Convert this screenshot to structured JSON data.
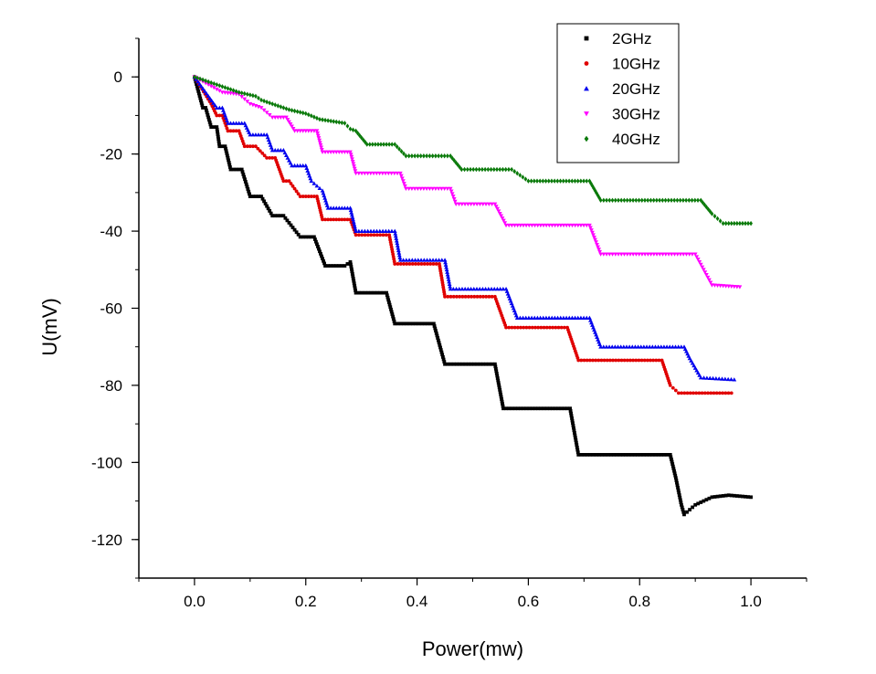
{
  "chart_data": {
    "type": "scatter",
    "title": "",
    "xlabel": "Power(mw)",
    "ylabel": "U(mV)",
    "xlim": [
      -0.1,
      1.1
    ],
    "ylim": [
      -130,
      10
    ],
    "xticks": [
      0.0,
      0.2,
      0.4,
      0.6,
      0.8,
      1.0
    ],
    "xtick_labels": [
      "0.0",
      "0.2",
      "0.4",
      "0.6",
      "0.8",
      "1.0"
    ],
    "yticks": [
      0,
      -20,
      -40,
      -60,
      -80,
      -100,
      -120
    ],
    "ytick_labels": [
      "0",
      "-20",
      "-40",
      "-60",
      "-80",
      "-100",
      "-120"
    ],
    "grid": false,
    "legend_position": "top-right",
    "series": [
      {
        "name": "2GHz",
        "color": "#000000",
        "marker": "square",
        "points": [
          [
            0,
            0
          ],
          [
            0.015,
            -8
          ],
          [
            0.02,
            -8
          ],
          [
            0.03,
            -13
          ],
          [
            0.04,
            -13
          ],
          [
            0.045,
            -18
          ],
          [
            0.055,
            -18
          ],
          [
            0.065,
            -24
          ],
          [
            0.085,
            -24
          ],
          [
            0.1,
            -31
          ],
          [
            0.12,
            -31
          ],
          [
            0.14,
            -36
          ],
          [
            0.16,
            -36
          ],
          [
            0.19,
            -41.5
          ],
          [
            0.215,
            -41.5
          ],
          [
            0.235,
            -49
          ],
          [
            0.27,
            -49
          ],
          [
            0.28,
            -48
          ],
          [
            0.29,
            -56
          ],
          [
            0.345,
            -56
          ],
          [
            0.36,
            -64
          ],
          [
            0.43,
            -64
          ],
          [
            0.45,
            -74.5
          ],
          [
            0.54,
            -74.5
          ],
          [
            0.555,
            -86
          ],
          [
            0.675,
            -86
          ],
          [
            0.69,
            -98
          ],
          [
            0.855,
            -98
          ],
          [
            0.865,
            -104
          ],
          [
            0.875,
            -111
          ],
          [
            0.88,
            -113.5
          ],
          [
            0.9,
            -111
          ],
          [
            0.93,
            -109
          ],
          [
            0.96,
            -108.5
          ],
          [
            1.0,
            -109
          ]
        ]
      },
      {
        "name": "10GHz",
        "color": "#e00000",
        "marker": "circle",
        "points": [
          [
            0,
            0
          ],
          [
            0.03,
            -7
          ],
          [
            0.04,
            -10
          ],
          [
            0.05,
            -10
          ],
          [
            0.06,
            -14
          ],
          [
            0.08,
            -14
          ],
          [
            0.09,
            -18
          ],
          [
            0.11,
            -18
          ],
          [
            0.13,
            -21
          ],
          [
            0.145,
            -21
          ],
          [
            0.16,
            -27
          ],
          [
            0.17,
            -27
          ],
          [
            0.19,
            -31
          ],
          [
            0.22,
            -31
          ],
          [
            0.23,
            -37
          ],
          [
            0.28,
            -37
          ],
          [
            0.29,
            -41
          ],
          [
            0.35,
            -41
          ],
          [
            0.36,
            -48.5
          ],
          [
            0.44,
            -48.5
          ],
          [
            0.45,
            -57
          ],
          [
            0.54,
            -57
          ],
          [
            0.56,
            -65
          ],
          [
            0.67,
            -65
          ],
          [
            0.69,
            -73.5
          ],
          [
            0.84,
            -73.5
          ],
          [
            0.855,
            -80
          ],
          [
            0.87,
            -82
          ],
          [
            0.965,
            -82
          ]
        ]
      },
      {
        "name": "20GHz",
        "color": "#0000ee",
        "marker": "triangle-up",
        "points": [
          [
            0,
            0
          ],
          [
            0.04,
            -8
          ],
          [
            0.05,
            -8
          ],
          [
            0.06,
            -12
          ],
          [
            0.09,
            -12
          ],
          [
            0.1,
            -15
          ],
          [
            0.13,
            -15
          ],
          [
            0.14,
            -19
          ],
          [
            0.16,
            -19
          ],
          [
            0.175,
            -23
          ],
          [
            0.2,
            -23
          ],
          [
            0.21,
            -27
          ],
          [
            0.23,
            -29.5
          ],
          [
            0.24,
            -34
          ],
          [
            0.28,
            -34
          ],
          [
            0.29,
            -40
          ],
          [
            0.36,
            -40
          ],
          [
            0.37,
            -47.5
          ],
          [
            0.45,
            -47.5
          ],
          [
            0.46,
            -55
          ],
          [
            0.56,
            -55
          ],
          [
            0.58,
            -62.5
          ],
          [
            0.71,
            -62.5
          ],
          [
            0.73,
            -70
          ],
          [
            0.88,
            -70
          ],
          [
            0.89,
            -73
          ],
          [
            0.91,
            -78
          ],
          [
            0.97,
            -78.5
          ]
        ]
      },
      {
        "name": "30GHz",
        "color": "#ff00ff",
        "marker": "triangle-down",
        "points": [
          [
            0,
            0
          ],
          [
            0.05,
            -4
          ],
          [
            0.08,
            -4.5
          ],
          [
            0.1,
            -7
          ],
          [
            0.12,
            -8
          ],
          [
            0.14,
            -10.5
          ],
          [
            0.165,
            -10.5
          ],
          [
            0.18,
            -14
          ],
          [
            0.22,
            -14
          ],
          [
            0.23,
            -19.5
          ],
          [
            0.28,
            -19.5
          ],
          [
            0.29,
            -25
          ],
          [
            0.37,
            -25
          ],
          [
            0.38,
            -29
          ],
          [
            0.46,
            -29
          ],
          [
            0.47,
            -33
          ],
          [
            0.54,
            -33
          ],
          [
            0.56,
            -38.5
          ],
          [
            0.71,
            -38.5
          ],
          [
            0.73,
            -46
          ],
          [
            0.9,
            -46
          ],
          [
            0.915,
            -50
          ],
          [
            0.93,
            -54
          ],
          [
            0.98,
            -54.5
          ]
        ]
      },
      {
        "name": "40GHz",
        "color": "#0a7a0a",
        "marker": "diamond",
        "points": [
          [
            0,
            0
          ],
          [
            0.04,
            -2
          ],
          [
            0.06,
            -3
          ],
          [
            0.08,
            -4
          ],
          [
            0.11,
            -5
          ],
          [
            0.12,
            -6
          ],
          [
            0.14,
            -7
          ],
          [
            0.16,
            -8
          ],
          [
            0.17,
            -8.5
          ],
          [
            0.2,
            -9.5
          ],
          [
            0.225,
            -11
          ],
          [
            0.27,
            -12
          ],
          [
            0.28,
            -13.5
          ],
          [
            0.29,
            -14
          ],
          [
            0.31,
            -17.5
          ],
          [
            0.36,
            -17.5
          ],
          [
            0.38,
            -20.5
          ],
          [
            0.46,
            -20.5
          ],
          [
            0.48,
            -24
          ],
          [
            0.57,
            -24
          ],
          [
            0.6,
            -27
          ],
          [
            0.71,
            -27
          ],
          [
            0.73,
            -32
          ],
          [
            0.91,
            -32
          ],
          [
            0.93,
            -35.5
          ],
          [
            0.95,
            -38
          ],
          [
            1.0,
            -38
          ]
        ]
      }
    ]
  }
}
